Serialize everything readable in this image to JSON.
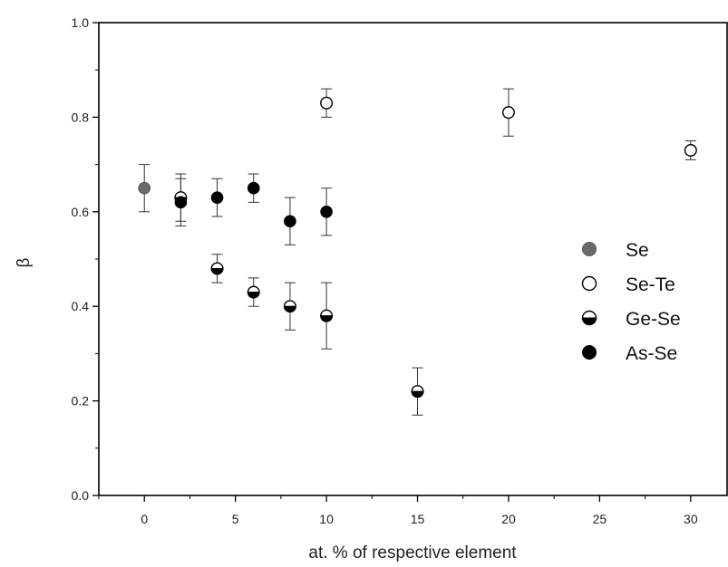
{
  "chart_data": {
    "type": "scatter",
    "title": "",
    "xlabel": "at. % of respective element",
    "ylabel": "β",
    "xlim": [
      -2.5,
      32
    ],
    "ylim": [
      0.0,
      1.0
    ],
    "xticks": [
      0,
      5,
      10,
      15,
      20,
      25,
      30
    ],
    "yticks": [
      0.0,
      0.2,
      0.4,
      0.6,
      0.8,
      1.0
    ],
    "xtick_labels": [
      "0",
      "5",
      "10",
      "15",
      "20",
      "25",
      "30"
    ],
    "ytick_labels": [
      "0.0",
      "0.2",
      "0.4",
      "0.6",
      "0.8",
      "1.0"
    ],
    "grid": false,
    "legend_position": "right",
    "series": [
      {
        "name": "Se",
        "marker": "filled-gray",
        "color": "#666666",
        "points": [
          {
            "x": 0,
            "y": 0.65,
            "err": 0.05
          }
        ]
      },
      {
        "name": "Se-Te",
        "marker": "open",
        "color": "#111111",
        "points": [
          {
            "x": 10,
            "y": 0.83,
            "err": 0.03
          },
          {
            "x": 20,
            "y": 0.81,
            "err": 0.05
          },
          {
            "x": 30,
            "y": 0.73,
            "err": 0.02
          }
        ]
      },
      {
        "name": "Ge-Se",
        "marker": "half-filled-bottom",
        "color": "#111111",
        "points": [
          {
            "x": 2,
            "y": 0.63,
            "err": 0.05
          },
          {
            "x": 4,
            "y": 0.48,
            "err": 0.03
          },
          {
            "x": 6,
            "y": 0.43,
            "err": 0.03
          },
          {
            "x": 8,
            "y": 0.4,
            "err": 0.05
          },
          {
            "x": 10,
            "y": 0.38,
            "err": 0.07
          },
          {
            "x": 15,
            "y": 0.22,
            "err": 0.05
          }
        ]
      },
      {
        "name": "As-Se",
        "marker": "filled-black",
        "color": "#111111",
        "points": [
          {
            "x": 2,
            "y": 0.62,
            "err": 0.05
          },
          {
            "x": 4,
            "y": 0.63,
            "err": 0.04
          },
          {
            "x": 6,
            "y": 0.65,
            "err": 0.03
          },
          {
            "x": 8,
            "y": 0.58,
            "err": 0.05
          },
          {
            "x": 10,
            "y": 0.6,
            "err": 0.05
          }
        ]
      }
    ]
  }
}
